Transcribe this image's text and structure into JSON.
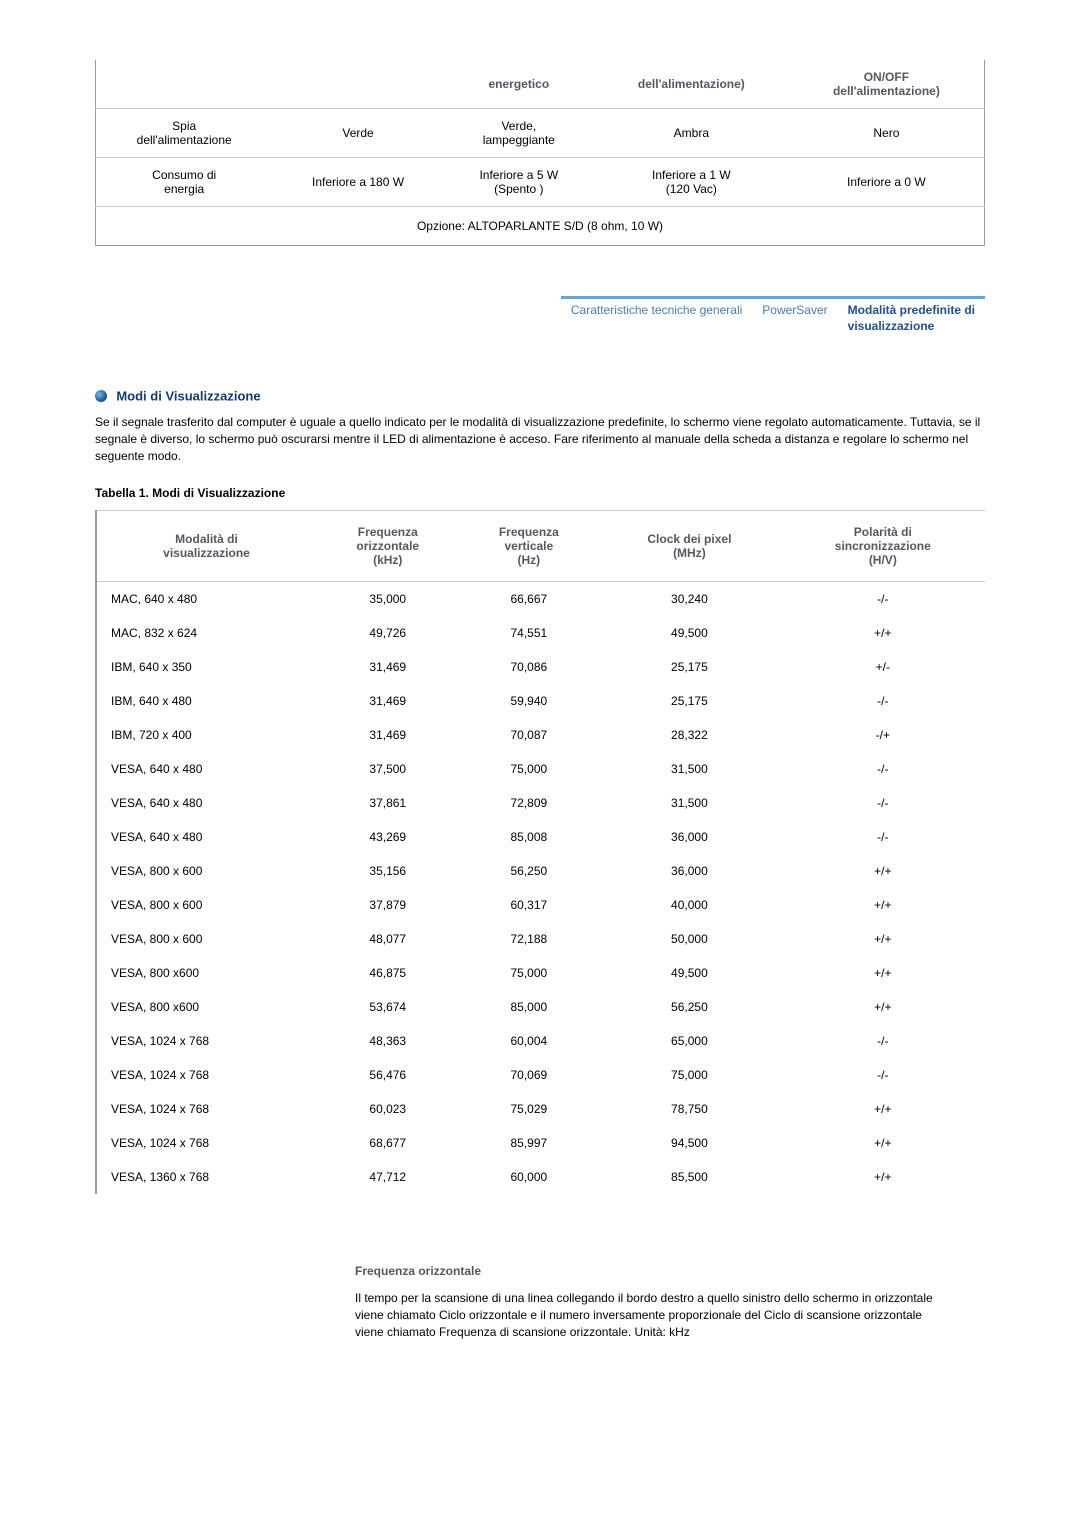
{
  "top_table": {
    "headers": [
      "",
      "",
      "energetico",
      "dell'alimentazione)",
      "ON/OFF\ndell'alimentazione)"
    ],
    "rows": [
      [
        "Spia\ndell'alimentazione",
        "Verde",
        "Verde,\nlampeggiante",
        "Ambra",
        "Nero"
      ],
      [
        "Consumo di\nenergia",
        "Inferiore a 180 W",
        "Inferiore a 5 W\n(Spento )",
        "Inferiore a 1 W\n(120 Vac)",
        "Inferiore a 0 W"
      ]
    ],
    "option_row": "Opzione: ALTOPARLANTE S/D (8 ohm, 10 W)"
  },
  "tabs": {
    "items": [
      {
        "label": "Caratteristiche tecniche generali",
        "active": false
      },
      {
        "label": "PowerSaver",
        "active": false
      },
      {
        "label": "Modalità predefinite di\nvisualizzazione",
        "active": true
      }
    ]
  },
  "section": {
    "heading": "Modi di Visualizzazione",
    "paragraph": "Se il segnale trasferito dal computer è uguale a quello indicato per le modalità di visualizzazione predefinite, lo schermo viene regolato automaticamente. Tuttavia, se il segnale è diverso, lo schermo può oscurarsi mentre il LED di alimentazione è acceso. Fare riferimento al manuale della scheda a distanza e regolare lo schermo nel seguente modo.",
    "table_caption": "Tabella 1. Modi di Visualizzazione"
  },
  "data_table": {
    "columns": [
      "Modalità di\nvisualizzazione",
      "Frequenza\norizzontale\n(kHz)",
      "Frequenza\nverticale\n(Hz)",
      "Clock dei pixel\n(MHz)",
      "Polarità di\nsincronizzazione\n(H/V)"
    ],
    "rows": [
      [
        "MAC, 640 x 480",
        "35,000",
        "66,667",
        "30,240",
        "-/-"
      ],
      [
        "MAC, 832 x 624",
        "49,726",
        "74,551",
        "49,500",
        "+/+"
      ],
      [
        "IBM, 640 x 350",
        "31,469",
        "70,086",
        "25,175",
        "+/-"
      ],
      [
        "IBM, 640 x 480",
        "31,469",
        "59,940",
        "25,175",
        "-/-"
      ],
      [
        "IBM, 720 x 400",
        "31,469",
        "70,087",
        "28,322",
        "-/+"
      ],
      [
        "VESA, 640 x 480",
        "37,500",
        "75,000",
        "31,500",
        "-/-"
      ],
      [
        "VESA, 640 x 480",
        "37,861",
        "72,809",
        "31,500",
        "-/-"
      ],
      [
        "VESA, 640 x 480",
        "43,269",
        "85,008",
        "36,000",
        "-/-"
      ],
      [
        "VESA, 800 x 600",
        "35,156",
        "56,250",
        "36,000",
        "+/+"
      ],
      [
        "VESA, 800 x 600",
        "37,879",
        "60,317",
        "40,000",
        "+/+"
      ],
      [
        "VESA, 800 x 600",
        "48,077",
        "72,188",
        "50,000",
        "+/+"
      ],
      [
        "VESA, 800 x600",
        "46,875",
        "75,000",
        "49,500",
        "+/+"
      ],
      [
        "VESA, 800 x600",
        "53,674",
        "85,000",
        "56,250",
        "+/+"
      ],
      [
        "VESA, 1024 x 768",
        "48,363",
        "60,004",
        "65,000",
        "-/-"
      ],
      [
        "VESA, 1024 x 768",
        "56,476",
        "70,069",
        "75,000",
        "-/-"
      ],
      [
        "VESA, 1024 x 768",
        "60,023",
        "75,029",
        "78,750",
        "+/+"
      ],
      [
        "VESA, 1024 x 768",
        "68,677",
        "85,997",
        "94,500",
        "+/+"
      ],
      [
        "VESA, 1360 x 768",
        "47,712",
        "60,000",
        "85,500",
        "+/+"
      ]
    ]
  },
  "footnote": {
    "title": "Frequenza orizzontale",
    "body": "Il tempo per la scansione di una linea collegando il bordo destro a quello sinistro dello schermo in orizzontale viene chiamato Ciclo orizzontale e il numero inversamente proporzionale del Ciclo di scansione orizzontale viene chiamato Frequenza di scansione orizzontale. Unità: kHz"
  },
  "colors": {
    "heading_blue": "#163a6e",
    "th_gray": "#575764",
    "tab_blue": "#4a7bb0",
    "tab_active": "#224f8f",
    "tab_border": "#5fa7e0"
  }
}
